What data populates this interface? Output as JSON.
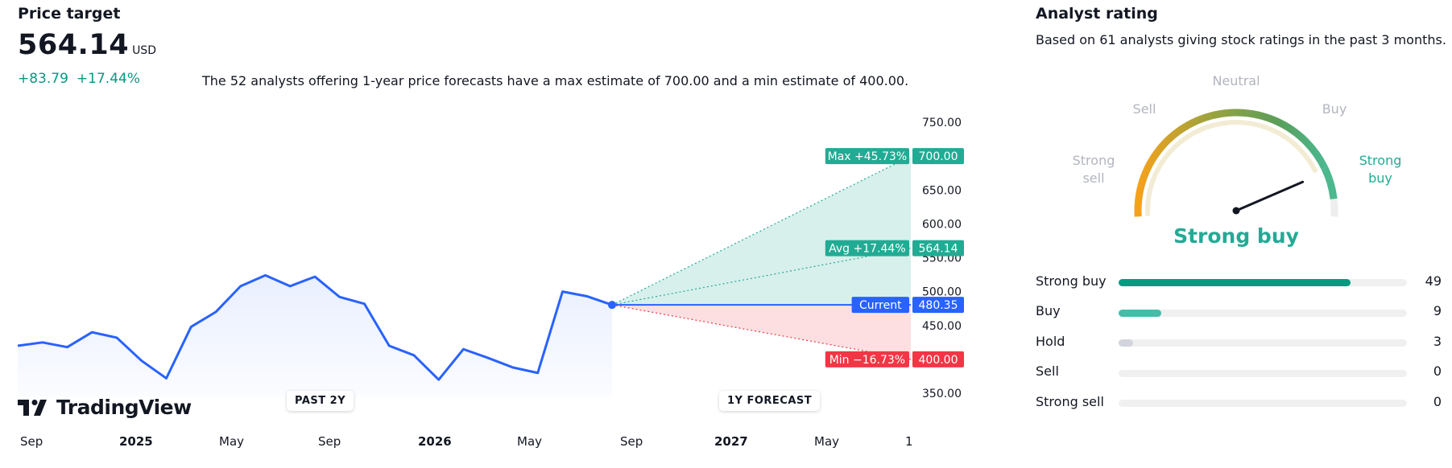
{
  "price_target": {
    "title": "Price target",
    "value": "564.14",
    "currency": "USD",
    "change_abs": "+83.79",
    "change_pct": "+17.44%",
    "description": "The 52 analysts offering 1-year price forecasts have a max estimate of 700.00 and a min estimate of 400.00.",
    "past_label": "PAST 2Y",
    "forecast_label": "1Y FORECAST",
    "logo_text": "TradingView",
    "colors": {
      "positive": "#089981",
      "line": "#2962ff",
      "upside": "#22ab94",
      "downside": "#f23645"
    }
  },
  "chart_data": {
    "type": "line",
    "x_tick_labels": [
      "Sep",
      "2025",
      "May",
      "Sep",
      "2026",
      "May",
      "Sep",
      "2027",
      "May",
      "1"
    ],
    "y_tick_labels": [
      "750.00",
      "650.00",
      "600.00",
      "550.00",
      "500.00",
      "450.00",
      "350.00"
    ],
    "ylim": [
      340,
      760
    ],
    "series": [
      {
        "x": [
          "2024-08",
          "2024-09",
          "2024-10",
          "2024-11",
          "2024-12",
          "2025-01",
          "2025-02",
          "2025-03",
          "2025-04",
          "2025-05",
          "2025-06",
          "2025-07",
          "2025-08",
          "2025-09",
          "2025-10",
          "2025-11",
          "2025-12",
          "2026-01",
          "2026-02",
          "2026-03",
          "2026-04",
          "2026-05",
          "2026-06",
          "2026-07",
          "2026-08"
        ],
        "values": [
          420,
          425,
          418,
          440,
          432,
          398,
          372,
          448,
          470,
          508,
          524,
          508,
          522,
          492,
          482,
          420,
          406,
          370,
          415,
          402,
          388,
          380,
          500,
          493,
          480.35
        ]
      }
    ],
    "forecast": {
      "max": {
        "label": "Max +45.73%",
        "value": 700.0,
        "value_text": "700.00"
      },
      "avg": {
        "label": "Avg +17.44%",
        "value": 564.14,
        "value_text": "564.14"
      },
      "current": {
        "label": "Current",
        "value": 480.35,
        "value_text": "480.35"
      },
      "min": {
        "label": "Min −16.73%",
        "value": 400.0,
        "value_text": "400.00"
      }
    },
    "grid": false
  },
  "analyst_rating": {
    "title": "Analyst rating",
    "subtitle": "Based on 61 analysts giving stock ratings in the past 3 months.",
    "gauge_labels": {
      "strong_sell": "Strong\nsell",
      "sell": "Sell",
      "neutral": "Neutral",
      "buy": "Buy",
      "strong_buy": "Strong\nbuy"
    },
    "result": "Strong buy",
    "needle_fraction": 0.87,
    "total": 61,
    "rows": [
      {
        "label": "Strong buy",
        "count": "49",
        "value": 49,
        "color": "#089981"
      },
      {
        "label": "Buy",
        "count": "9",
        "value": 9,
        "color": "#42bda8"
      },
      {
        "label": "Hold",
        "count": "3",
        "value": 3,
        "color": "#d1d4dc"
      },
      {
        "label": "Sell",
        "count": "0",
        "value": 0,
        "color": "#f23645"
      },
      {
        "label": "Strong sell",
        "count": "0",
        "value": 0,
        "color": "#b22833"
      }
    ]
  }
}
